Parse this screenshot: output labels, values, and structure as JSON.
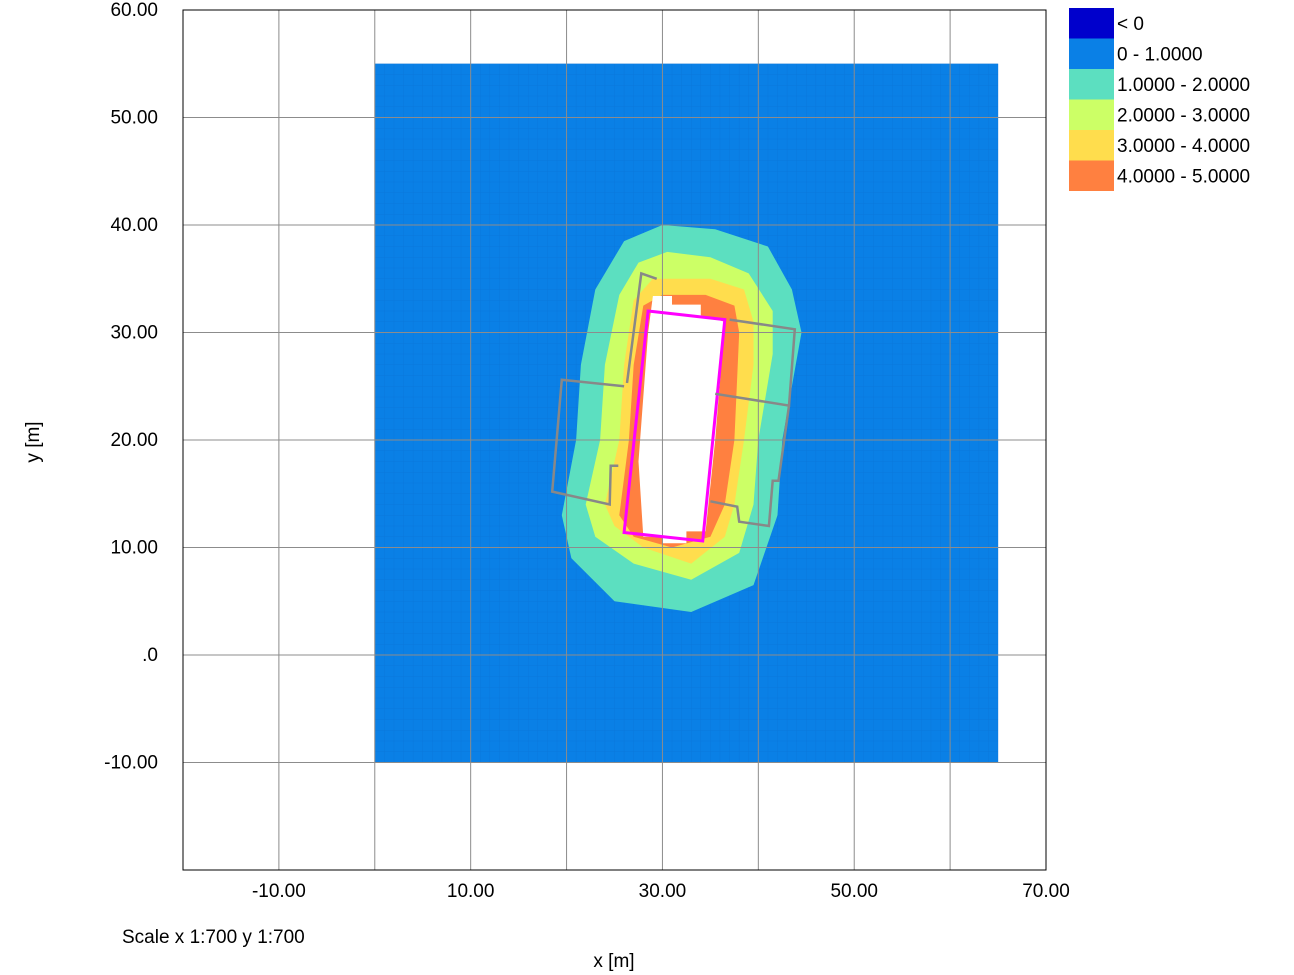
{
  "chart_data": {
    "type": "heatmap",
    "xlabel": "x [m]",
    "ylabel": "y [m]",
    "xlim": [
      -20,
      70
    ],
    "ylim": [
      -20,
      60
    ],
    "x_ticks": [
      {
        "value": -10,
        "label": "-10.00"
      },
      {
        "value": 10,
        "label": "10.00"
      },
      {
        "value": 30,
        "label": "30.00"
      },
      {
        "value": 50,
        "label": "50.00"
      },
      {
        "value": 70,
        "label": "70.00"
      }
    ],
    "y_ticks": [
      {
        "value": 60,
        "label": "60.00"
      },
      {
        "value": 50,
        "label": "50.00"
      },
      {
        "value": 40,
        "label": "40.00"
      },
      {
        "value": 30,
        "label": "30.00"
      },
      {
        "value": 20,
        "label": "20.00"
      },
      {
        "value": 10,
        "label": "10.00"
      },
      {
        "value": 0,
        "label": ".0"
      },
      {
        "value": -10,
        "label": "-10.00"
      }
    ],
    "grid_x": [
      -20,
      -10,
      0,
      10,
      20,
      30,
      40,
      50,
      60,
      70
    ],
    "grid_y": [
      -20,
      -10,
      0,
      10,
      20,
      30,
      40,
      50,
      60
    ],
    "grid": true,
    "scale_text": "Scale x 1:700  y 1:700",
    "field_extent": {
      "x": [
        0,
        65
      ],
      "y": [
        -10,
        55
      ]
    },
    "legend_position": "top-right",
    "legend": [
      {
        "label": "< 0",
        "color": "#0000cc"
      },
      {
        "label": "0 - 1.0000",
        "color": "#0a80e6"
      },
      {
        "label": "1.0000 - 2.0000",
        "color": "#5cdfc0"
      },
      {
        "label": "2.0000 - 3.0000",
        "color": "#ccff66"
      },
      {
        "label": "3.0000 - 4.0000",
        "color": "#ffdd4d"
      },
      {
        "label": "4.0000 - 5.0000",
        "color": "#ff8040"
      }
    ],
    "contour_bands": [
      {
        "band": "1.0000 - 2.0000",
        "color": "#5cdfc0",
        "polygon": [
          [
            35.5,
            39.6
          ],
          [
            41,
            38
          ],
          [
            43.5,
            34
          ],
          [
            44.5,
            30
          ],
          [
            42.5,
            20
          ],
          [
            42,
            13
          ],
          [
            39.5,
            6.5
          ],
          [
            33,
            4
          ],
          [
            25,
            5
          ],
          [
            20.5,
            9
          ],
          [
            19.5,
            13
          ],
          [
            21,
            20
          ],
          [
            21.5,
            27
          ],
          [
            23,
            34
          ],
          [
            26,
            38.5
          ],
          [
            30,
            40
          ]
        ]
      },
      {
        "band": "2.0000 - 3.0000",
        "color": "#ccff66",
        "polygon": [
          [
            35,
            37
          ],
          [
            39,
            35.5
          ],
          [
            41.5,
            32
          ],
          [
            41.5,
            28
          ],
          [
            40,
            20
          ],
          [
            39.5,
            14
          ],
          [
            38,
            9.5
          ],
          [
            33,
            7
          ],
          [
            27,
            8.5
          ],
          [
            23,
            11
          ],
          [
            22,
            14
          ],
          [
            23.5,
            20
          ],
          [
            24,
            27
          ],
          [
            25.5,
            33.5
          ],
          [
            27.5,
            36.5
          ],
          [
            30.5,
            37.5
          ]
        ]
      },
      {
        "band": "3.0000 - 4.0000",
        "color": "#ffdd4d",
        "polygon": [
          [
            35,
            35
          ],
          [
            38.5,
            34
          ],
          [
            39.5,
            31
          ],
          [
            39.5,
            27
          ],
          [
            38.5,
            20
          ],
          [
            37.5,
            14
          ],
          [
            36.5,
            11
          ],
          [
            33,
            8.5
          ],
          [
            28,
            10
          ],
          [
            25,
            12
          ],
          [
            24,
            14
          ],
          [
            25.5,
            20
          ],
          [
            26,
            27
          ],
          [
            27,
            33
          ],
          [
            29,
            35
          ]
        ]
      },
      {
        "band": "4.0000 - 5.0000",
        "color": "#ff8040",
        "polygon": [
          [
            34.5,
            33.5
          ],
          [
            37.5,
            32.5
          ],
          [
            38,
            30
          ],
          [
            37.5,
            20
          ],
          [
            36.5,
            14
          ],
          [
            35,
            11
          ],
          [
            31,
            10
          ],
          [
            27,
            11
          ],
          [
            25.5,
            13
          ],
          [
            26.5,
            20
          ],
          [
            27,
            27
          ],
          [
            28,
            32.5
          ],
          [
            30,
            33.5
          ]
        ]
      }
    ],
    "undefined_regions": [
      {
        "label": "no data",
        "polygon": [
          [
            29,
            33.4
          ],
          [
            31,
            33.4
          ],
          [
            31,
            32.6
          ],
          [
            34,
            32.6
          ],
          [
            34,
            31.6
          ],
          [
            36.5,
            31
          ],
          [
            35.5,
            20
          ],
          [
            34.5,
            11.5
          ],
          [
            32.5,
            11.5
          ],
          [
            32.5,
            10.4
          ],
          [
            30,
            10.4
          ],
          [
            30,
            11
          ],
          [
            28,
            11
          ],
          [
            27.5,
            18
          ],
          [
            28,
            24
          ],
          [
            28.5,
            30
          ]
        ]
      }
    ],
    "outlines": [
      {
        "name": "slab",
        "color": "#ff00ff",
        "closed": true,
        "points": [
          [
            28.5,
            32
          ],
          [
            36.5,
            31.2
          ],
          [
            34.2,
            10.6
          ],
          [
            26,
            11.4
          ]
        ]
      },
      {
        "name": "wall-left",
        "color": "#888888",
        "closed": false,
        "points": [
          [
            26,
            25
          ],
          [
            19.5,
            25.6
          ],
          [
            18.5,
            15.2
          ],
          [
            24.5,
            14
          ],
          [
            24.6,
            17.6
          ],
          [
            25.4,
            17.6
          ]
        ]
      },
      {
        "name": "wall-top-left",
        "color": "#888888",
        "closed": false,
        "points": [
          [
            26.3,
            25.3
          ],
          [
            27.8,
            35.5
          ],
          [
            29.4,
            35.0
          ]
        ]
      },
      {
        "name": "wall-right",
        "color": "#888888",
        "closed": false,
        "points": [
          [
            37,
            31.2
          ],
          [
            43.8,
            30.3
          ],
          [
            43.2,
            23.2
          ],
          [
            35.5,
            24.3
          ]
        ]
      },
      {
        "name": "wall-bottom-right",
        "color": "#888888",
        "closed": false,
        "points": [
          [
            43.2,
            23.2
          ],
          [
            42.1,
            16.2
          ],
          [
            41.5,
            16.2
          ],
          [
            41.1,
            12.0
          ],
          [
            38,
            12.4
          ],
          [
            37.8,
            13.8
          ],
          [
            35,
            14.3
          ]
        ]
      }
    ]
  }
}
